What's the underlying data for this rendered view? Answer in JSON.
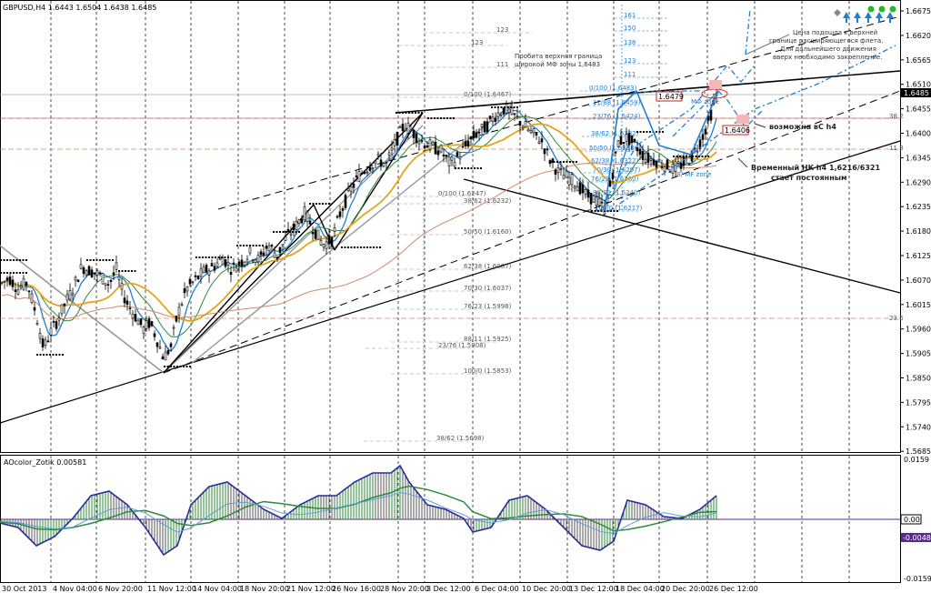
{
  "chart_data": {
    "type": "candlestick",
    "symbol_header": "GBPUSD,H4  1.6443 1.6504 1.6438 1.6485",
    "price_axis": {
      "ticks": [
        "1.6675",
        "1.6620",
        "1.6565",
        "1.6510",
        "1.6455",
        "1.6400",
        "1.6345",
        "1.6290",
        "1.6235",
        "1.6180",
        "1.6125",
        "1.6070",
        "1.6015",
        "1.5960",
        "1.5905",
        "1.5850",
        "1.5795",
        "1.5740",
        "1.5685"
      ],
      "range": [
        1.5665,
        1.67
      ],
      "current_price": "1.6485"
    },
    "time_axis": {
      "ticks": [
        "30 Oct 2013",
        "4 Nov 04:00",
        "6 Nov 20:00",
        "11 Nov 12:00",
        "14 Nov 04:00",
        "18 Nov 20:00",
        "21 Nov 12:00",
        "26 Nov 16:00",
        "28 Nov 20:00",
        "3 Dec 12:00",
        "6 Dec 04:00",
        "10 Dec 20:00",
        "13 Dec 12:00",
        "18 Dec 04:00",
        "20 Dec 20:00",
        "26 Dec 12:00"
      ]
    },
    "price_path": [
      [
        0,
        1.606
      ],
      [
        10,
        1.6075
      ],
      [
        20,
        1.605
      ],
      [
        30,
        1.6065
      ],
      [
        40,
        1.599
      ],
      [
        48,
        1.5915
      ],
      [
        55,
        1.595
      ],
      [
        62,
        1.5975
      ],
      [
        70,
        1.601
      ],
      [
        80,
        1.605
      ],
      [
        90,
        1.61
      ],
      [
        100,
        1.609
      ],
      [
        110,
        1.608
      ],
      [
        120,
        1.606
      ],
      [
        128,
        1.6095
      ],
      [
        135,
        1.604
      ],
      [
        142,
        1.601
      ],
      [
        150,
        1.5985
      ],
      [
        158,
        1.596
      ],
      [
        165,
        1.5975
      ],
      [
        172,
        1.594
      ],
      [
        180,
        1.5895
      ],
      [
        188,
        1.592
      ],
      [
        195,
        1.599
      ],
      [
        205,
        1.605
      ],
      [
        215,
        1.607
      ],
      [
        225,
        1.609
      ],
      [
        235,
        1.61
      ],
      [
        245,
        1.612
      ],
      [
        255,
        1.6095
      ],
      [
        265,
        1.611
      ],
      [
        275,
        1.613
      ],
      [
        285,
        1.6115
      ],
      [
        295,
        1.615
      ],
      [
        305,
        1.6125
      ],
      [
        315,
        1.6165
      ],
      [
        325,
        1.619
      ],
      [
        335,
        1.622
      ],
      [
        345,
        1.6185
      ],
      [
        355,
        1.615
      ],
      [
        365,
        1.616
      ],
      [
        375,
        1.6225
      ],
      [
        385,
        1.627
      ],
      [
        395,
        1.6305
      ],
      [
        405,
        1.6325
      ],
      [
        415,
        1.634
      ],
      [
        425,
        1.633
      ],
      [
        435,
        1.638
      ],
      [
        445,
        1.642
      ],
      [
        455,
        1.64
      ],
      [
        465,
        1.638
      ],
      [
        475,
        1.637
      ],
      [
        485,
        1.636
      ],
      [
        495,
        1.633
      ],
      [
        505,
        1.635
      ],
      [
        515,
        1.638
      ],
      [
        525,
        1.64
      ],
      [
        535,
        1.6415
      ],
      [
        545,
        1.644
      ],
      [
        555,
        1.6455
      ],
      [
        565,
        1.644
      ],
      [
        575,
        1.642
      ],
      [
        585,
        1.64
      ],
      [
        595,
        1.6385
      ],
      [
        605,
        1.634
      ],
      [
        615,
        1.631
      ],
      [
        625,
        1.63
      ],
      [
        635,
        1.6285
      ],
      [
        645,
        1.626
      ],
      [
        655,
        1.625
      ],
      [
        665,
        1.623
      ],
      [
        672,
        1.629
      ],
      [
        680,
        1.638
      ],
      [
        690,
        1.639
      ],
      [
        700,
        1.637
      ],
      [
        710,
        1.6345
      ],
      [
        720,
        1.634
      ],
      [
        730,
        1.633
      ],
      [
        740,
        1.632
      ],
      [
        750,
        1.633
      ],
      [
        760,
        1.6345
      ],
      [
        770,
        1.638
      ],
      [
        780,
        1.643
      ],
      [
        788,
        1.6485
      ]
    ],
    "annotations": {
      "price_labels": [
        "1.6479",
        "1.6406"
      ],
      "text_top": [
        "Пробита верхняя граница",
        "широкой МФ зоны 1,6483"
      ],
      "text_right_top": [
        "Цена подошла к верхней",
        "границе расширяющегося флета.",
        "Для дальнейшего движения",
        "вверх необходимо закрепление."
      ],
      "text_bc": "возможна вС h4",
      "text_nk": [
        "Временный НК h4 1,6216/6321",
        "стает постоянным"
      ],
      "mf_zone_top": "МФ zone",
      "mf_zone_bottom": "B/   МF zone",
      "fib_grey": [
        "123",
        "123",
        "111",
        "0/100 (1.6467)",
        "0/100 (1.6247)",
        "38/62 (1.6232)",
        "50/50 (1.6160)",
        "62/38 (1.6087)",
        "70/30 (1.6037)",
        "76/23 (1.5998)",
        "88/11 (1.5925)",
        "23/76 (1.5908)",
        "100/0 (1.5853)",
        "38/62 (1.5698)"
      ],
      "fib_blue": [
        "161",
        "150",
        "138",
        "123",
        "111",
        "0/100 (1.6483)",
        "11/88 (1.6459)",
        "23/76 (1.6424)",
        "38/62 (1.6382)",
        "50/50 (1.6358)",
        "62/38 (1.6322)",
        "70/30 (1.6297)",
        "76/23 (1.6280)",
        "88/11 (1.6240)",
        "100/0 (1.6217)"
      ],
      "right_levels": [
        "38.2",
        "11.8",
        "23.6"
      ]
    },
    "indicator": {
      "name": "AOcolor_Zotik 0.00581",
      "axis_ticks": [
        "0.0159",
        "0.00",
        "-0.0048",
        "-0.0159"
      ],
      "zero_label": "0.00",
      "current_label": "-0.0048"
    }
  },
  "colors": {
    "candle": "#000000",
    "ma_fast": "#1e7fd4",
    "ma_slow": "#e8a317",
    "ma_green": "#2e8b3a",
    "ma_brown": "#d08a6a",
    "fib_blue": "#1e7fd4",
    "grid": "#000000",
    "ao_line": "#2a2aa0",
    "ao_green": "#2e8b3a",
    "price_box": "#000000",
    "label_box_red": "#d02020",
    "arrow_blue": "#1e7fd4",
    "dot_green": "#22bb22"
  }
}
